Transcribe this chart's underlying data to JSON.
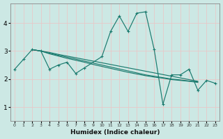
{
  "title": "",
  "xlabel": "Humidex (Indice chaleur)",
  "ylabel": "",
  "background_color": "#cce8e4",
  "grid_color": "#e8c8c8",
  "line_color": "#1a7a6e",
  "x_ticks": [
    0,
    1,
    2,
    3,
    4,
    5,
    6,
    7,
    8,
    9,
    10,
    11,
    12,
    13,
    14,
    15,
    16,
    17,
    18,
    19,
    20,
    21,
    22,
    23
  ],
  "y_ticks": [
    1,
    2,
    3,
    4
  ],
  "ylim": [
    0.5,
    4.7
  ],
  "xlim": [
    -0.5,
    23.5
  ],
  "series_main": [
    2.35,
    2.7,
    3.05,
    3.0,
    2.35,
    2.5,
    2.6,
    2.2,
    2.4,
    2.8,
    3.7,
    4.25,
    3.7,
    4.35,
    4.4,
    3.05,
    1.1,
    2.15,
    2.15,
    2.35,
    1.6,
    1.95,
    1.85
  ],
  "series_main_x": [
    0,
    1,
    2,
    3,
    4,
    5,
    6,
    7,
    8,
    10,
    11,
    12,
    13,
    14,
    15,
    16,
    17,
    18,
    19,
    20,
    21,
    22,
    23
  ],
  "trend1": [
    3.05,
    3.0,
    2.95,
    2.88,
    2.82,
    2.76,
    2.7,
    2.64,
    2.58,
    2.52,
    2.46,
    2.4,
    2.34,
    2.28,
    2.22,
    2.16,
    2.1,
    2.04,
    1.98,
    1.92
  ],
  "trend1_x": [
    2,
    3,
    4,
    5,
    6,
    7,
    8,
    9,
    10,
    11,
    12,
    13,
    14,
    15,
    16,
    17,
    18,
    19,
    20,
    21
  ],
  "trend2": [
    3.05,
    3.0,
    2.92,
    2.85,
    2.78,
    2.71,
    2.64,
    2.57,
    2.5,
    2.43,
    2.36,
    2.29,
    2.22,
    2.15,
    2.1,
    2.05,
    2.0,
    1.97,
    1.93,
    1.9
  ],
  "trend2_x": [
    2,
    3,
    4,
    5,
    6,
    7,
    8,
    9,
    10,
    11,
    12,
    13,
    14,
    15,
    16,
    17,
    18,
    19,
    20,
    21
  ],
  "trend3": [
    3.05,
    3.0,
    2.9,
    2.82,
    2.74,
    2.67,
    2.6,
    2.52,
    2.45,
    2.38,
    2.31,
    2.24,
    2.18,
    2.12,
    2.07,
    2.03,
    1.98,
    1.95,
    1.92,
    1.88
  ],
  "trend3_x": [
    2,
    3,
    4,
    5,
    6,
    7,
    8,
    9,
    10,
    11,
    12,
    13,
    14,
    15,
    16,
    17,
    18,
    19,
    20,
    21
  ]
}
